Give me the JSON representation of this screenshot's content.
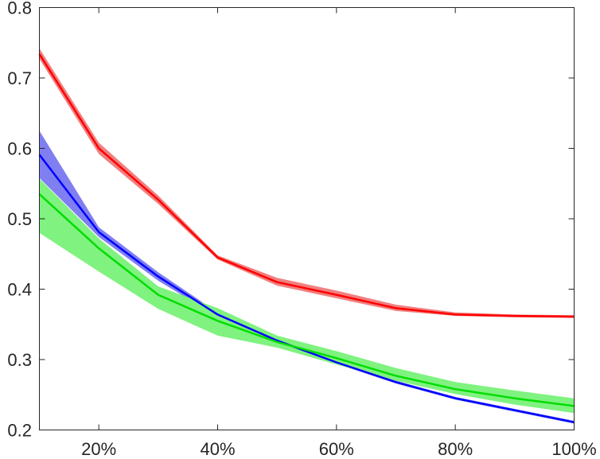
{
  "chart_data": {
    "type": "line",
    "title": "",
    "xlabel": "",
    "ylabel": "",
    "x": [
      10,
      20,
      30,
      40,
      50,
      60,
      70,
      80,
      90,
      100
    ],
    "xlim": [
      10,
      100
    ],
    "ylim": [
      0.2,
      0.8
    ],
    "x_ticks": [
      20,
      40,
      60,
      80,
      100
    ],
    "x_tick_labels": [
      "20%",
      "40%",
      "60%",
      "80%",
      "100%"
    ],
    "y_ticks": [
      0.2,
      0.3,
      0.4,
      0.5,
      0.6,
      0.7,
      0.8
    ],
    "y_tick_labels": [
      "0.2",
      "0.3",
      "0.4",
      "0.5",
      "0.6",
      "0.7",
      "0.8"
    ],
    "grid": false,
    "legend": "none",
    "series": [
      {
        "color": "#ff0000",
        "band_color": "#f08080",
        "values": [
          0.734,
          0.6,
          0.527,
          0.445,
          0.41,
          0.392,
          0.373,
          0.364,
          0.362,
          0.361
        ],
        "lower": [
          0.727,
          0.592,
          0.521,
          0.442,
          0.405,
          0.387,
          0.369,
          0.362,
          0.36,
          0.359
        ],
        "upper": [
          0.742,
          0.608,
          0.533,
          0.448,
          0.416,
          0.398,
          0.378,
          0.367,
          0.364,
          0.363
        ]
      },
      {
        "color": "#0000ff",
        "band_color": "#7f7ff2",
        "values": [
          0.591,
          0.481,
          0.418,
          0.364,
          0.327,
          0.296,
          0.268,
          0.245,
          0.228,
          0.211
        ],
        "lower": [
          0.558,
          0.474,
          0.412,
          0.361,
          0.325,
          0.294,
          0.266,
          0.243,
          0.226,
          0.209
        ],
        "upper": [
          0.625,
          0.488,
          0.424,
          0.367,
          0.33,
          0.298,
          0.27,
          0.247,
          0.23,
          0.213
        ]
      },
      {
        "color": "#00dd00",
        "band_color": "#7ff27f",
        "values": [
          0.535,
          0.458,
          0.392,
          0.355,
          0.325,
          0.302,
          0.277,
          0.258,
          0.245,
          0.234
        ],
        "lower": [
          0.48,
          0.425,
          0.372,
          0.334,
          0.317,
          0.293,
          0.27,
          0.251,
          0.236,
          0.224
        ],
        "upper": [
          0.557,
          0.472,
          0.404,
          0.373,
          0.334,
          0.312,
          0.288,
          0.268,
          0.256,
          0.245
        ]
      }
    ]
  }
}
